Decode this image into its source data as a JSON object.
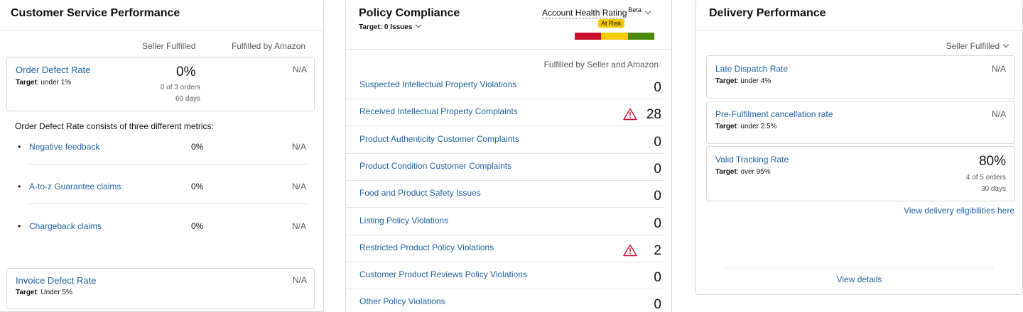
{
  "customer_service": {
    "title": "Customer Service Performance",
    "col_seller": "Seller Fulfilled",
    "col_amazon": "Fulfilled by Amazon",
    "odr": {
      "title": "Order Defect Rate",
      "target_label": "Target",
      "target_value": ": under 1%",
      "value": "0%",
      "orders": "0 of 3 orders",
      "days": "60 days",
      "amazon": "N/A"
    },
    "consists_text": "Order Defect Rate consists of three different metrics:",
    "sub_metrics": [
      {
        "label": "Negative feedback",
        "seller": "0%",
        "amazon": "N/A"
      },
      {
        "label": "A-to-z Guarantee claims",
        "seller": "0%",
        "amazon": "N/A"
      },
      {
        "label": "Chargeback claims",
        "seller": "0%",
        "amazon": "N/A"
      }
    ],
    "idr": {
      "title": "Invoice Defect Rate",
      "target_label": "Target",
      "target_value": ": Under 5%",
      "amazon": "N/A"
    }
  },
  "policy": {
    "title": "Policy Compliance",
    "target": "Target: 0 Issues",
    "health_label": "Account Health Rating",
    "beta": "Beta",
    "status": "At Risk",
    "colors": {
      "red": "#c7102b",
      "yellow": "#f7ca00",
      "green": "#4b8a0c"
    },
    "column_header": "Fulfilled by Seller and Amazon",
    "rows": [
      {
        "label": "Suspected Intellectual Property Violations",
        "value": "0",
        "warn": false
      },
      {
        "label": "Received Intellectual Property Complaints",
        "value": "28",
        "warn": true
      },
      {
        "label": "Product Authenticity Customer Complaints",
        "value": "0",
        "warn": false
      },
      {
        "label": "Product Condition Customer Complaints",
        "value": "0",
        "warn": false
      },
      {
        "label": "Food and Product Safety Issues",
        "value": "0",
        "warn": false
      },
      {
        "label": "Listing Policy Violations",
        "value": "0",
        "warn": false
      },
      {
        "label": "Restricted Product Policy Violations",
        "value": "2",
        "warn": true
      },
      {
        "label": "Customer Product Reviews Policy Violations",
        "value": "0",
        "warn": false
      },
      {
        "label": "Other Policy Violations",
        "value": "0",
        "warn": false
      }
    ]
  },
  "delivery": {
    "title": "Delivery Performance",
    "filter": "Seller Fulfilled",
    "metrics": [
      {
        "title": "Late Dispatch Rate",
        "target_label": "Target",
        "target_value": ": under 4%",
        "value": "N/A"
      },
      {
        "title": "Pre-Fulfilment cancellation rate",
        "target_label": "Target",
        "target_value": ": under 2.5%",
        "value": "N/A"
      },
      {
        "title": "Valid Tracking Rate",
        "target_label": "Target",
        "target_value": ": over 95%",
        "value": "80%",
        "orders": "4 of 5 orders",
        "days": "30 days"
      }
    ],
    "eligibility_link": "View delivery eligibilities here",
    "details_link": "View details"
  }
}
